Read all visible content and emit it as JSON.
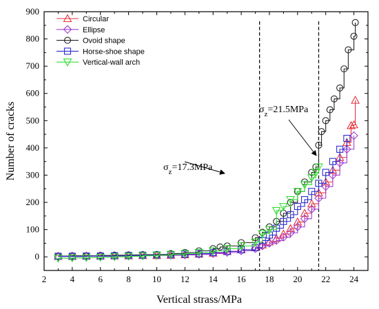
{
  "chart_data": {
    "type": "line",
    "title": "",
    "xlabel": "Vertical strass/MPa",
    "ylabel": "Number of cracks",
    "xlim": [
      2,
      25
    ],
    "ylim": [
      -50,
      900
    ],
    "xticks": [
      2,
      4,
      6,
      8,
      10,
      12,
      14,
      16,
      18,
      20,
      22,
      24
    ],
    "yticks": [
      0,
      100,
      200,
      300,
      400,
      500,
      600,
      700,
      800,
      900
    ],
    "grid": false,
    "legend_position": "top-left",
    "series": [
      {
        "name": "Circular",
        "color": "#e8323c",
        "marker": "triangle-up",
        "x": [
          3.0,
          4.0,
          5.0,
          6.0,
          7.0,
          8.0,
          9.0,
          10.0,
          11.0,
          12.0,
          13.0,
          14.0,
          15.0,
          16.0,
          17.0,
          17.5,
          18.0,
          18.5,
          19.0,
          19.5,
          20.0,
          20.5,
          21.0,
          21.5,
          22.0,
          22.5,
          23.0,
          23.5,
          23.8,
          24.0,
          24.1
        ],
        "y": [
          2,
          2,
          3,
          3,
          4,
          4,
          5,
          5,
          6,
          8,
          10,
          14,
          20,
          26,
          34,
          44,
          55,
          68,
          84,
          104,
          128,
          160,
          195,
          235,
          275,
          318,
          365,
          420,
          482,
          485,
          575
        ]
      },
      {
        "name": "Ellipse",
        "color": "#a040d0",
        "marker": "diamond",
        "x": [
          3.0,
          4.0,
          5.0,
          6.0,
          7.0,
          8.0,
          9.0,
          10.0,
          11.0,
          12.0,
          13.0,
          14.0,
          15.0,
          16.0,
          17.0,
          17.5,
          18.0,
          18.5,
          19.0,
          19.5,
          20.0,
          20.5,
          21.0,
          21.5,
          22.0,
          22.5,
          23.0,
          23.5,
          24.0
        ],
        "y": [
          1,
          1,
          2,
          2,
          3,
          3,
          4,
          5,
          6,
          7,
          9,
          12,
          16,
          22,
          30,
          40,
          50,
          60,
          72,
          88,
          110,
          140,
          175,
          215,
          258,
          300,
          345,
          395,
          445
        ]
      },
      {
        "name": "Ovoid shape",
        "color": "#222222",
        "marker": "circle",
        "x": [
          3.0,
          4.0,
          5.0,
          6.0,
          7.0,
          8.0,
          9.0,
          10.0,
          11.0,
          12.0,
          13.0,
          14.0,
          14.5,
          15.0,
          16.0,
          17.0,
          17.5,
          18.0,
          18.5,
          19.0,
          19.5,
          20.0,
          20.5,
          21.0,
          21.3,
          21.5,
          21.7,
          22.0,
          22.3,
          22.6,
          23.0,
          23.3,
          23.6,
          24.0,
          24.1
        ],
        "y": [
          3,
          4,
          4,
          5,
          6,
          7,
          8,
          9,
          12,
          16,
          22,
          30,
          36,
          40,
          52,
          70,
          90,
          110,
          130,
          160,
          200,
          240,
          275,
          310,
          330,
          410,
          460,
          500,
          540,
          580,
          620,
          690,
          760,
          810,
          860
        ]
      },
      {
        "name": "Horse-shoe shape",
        "color": "#2a2ad0",
        "marker": "square",
        "x": [
          3.0,
          4.0,
          5.0,
          6.0,
          7.0,
          8.0,
          9.0,
          10.0,
          11.0,
          12.0,
          13.0,
          14.0,
          15.0,
          16.0,
          17.0,
          17.5,
          18.0,
          18.5,
          19.0,
          19.5,
          20.0,
          20.5,
          21.0,
          21.5,
          22.0,
          22.5,
          23.0,
          23.5
        ],
        "y": [
          2,
          2,
          3,
          3,
          4,
          5,
          6,
          7,
          8,
          10,
          12,
          16,
          20,
          26,
          34,
          60,
          80,
          105,
          130,
          155,
          185,
          210,
          240,
          270,
          310,
          350,
          395,
          435
        ]
      },
      {
        "name": "Vertical-wall arch",
        "color": "#33dd33",
        "marker": "triangle-down",
        "x": [
          3.0,
          4.0,
          5.0,
          6.0,
          7.0,
          8.0,
          9.0,
          10.0,
          11.0,
          12.0,
          13.0,
          14.0,
          15.0,
          16.0,
          17.0,
          17.5,
          18.0,
          18.5,
          19.0,
          19.5,
          20.0,
          20.5,
          21.0,
          21.3,
          21.5
        ],
        "y": [
          -5,
          -4,
          -3,
          -2,
          0,
          2,
          4,
          6,
          9,
          12,
          16,
          22,
          30,
          40,
          54,
          85,
          100,
          170,
          185,
          210,
          240,
          265,
          290,
          310,
          330
        ]
      }
    ],
    "vlines": [
      17.3,
      21.5
    ],
    "annotations": [
      {
        "base": "σ",
        "sub": "z",
        "rest": "=17.3MPa"
      },
      {
        "base": "σ",
        "sub": "z",
        "rest": "=21.5MPa"
      }
    ]
  }
}
